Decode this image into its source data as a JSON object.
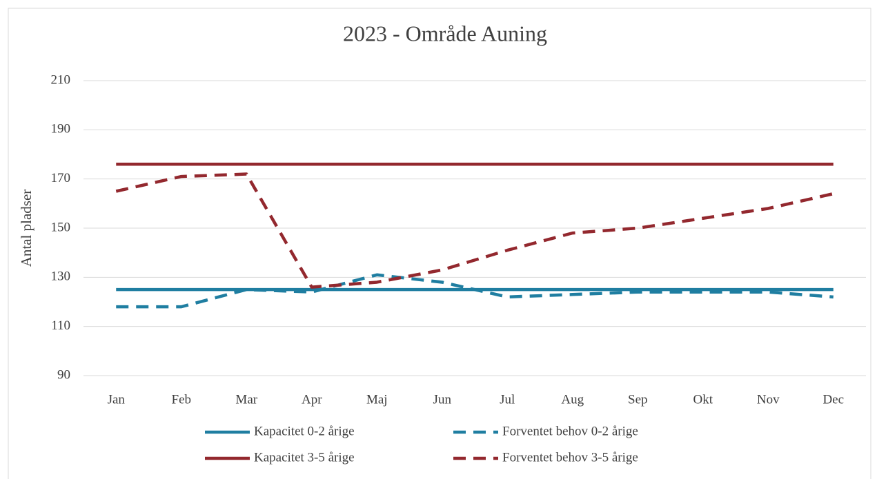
{
  "chart_data": {
    "type": "line",
    "title": "2023 - Område Auning",
    "ylabel": "Antal pladser",
    "categories": [
      "Jan",
      "Feb",
      "Mar",
      "Apr",
      "Maj",
      "Jun",
      "Jul",
      "Aug",
      "Sep",
      "Okt",
      "Nov",
      "Dec"
    ],
    "series": [
      {
        "name": "Kapacitet 0-2 årige",
        "color": "#1f7ea1",
        "dashed": false,
        "values": [
          125,
          125,
          125,
          125,
          125,
          125,
          125,
          125,
          125,
          125,
          125,
          125
        ]
      },
      {
        "name": "Forventet behov 0-2 årige",
        "color": "#1f7ea1",
        "dashed": true,
        "values": [
          118,
          118,
          125,
          124,
          131,
          128,
          122,
          123,
          124,
          124,
          124,
          122
        ]
      },
      {
        "name": "Kapacitet 3-5 årige",
        "color": "#93282e",
        "dashed": false,
        "values": [
          176,
          176,
          176,
          176,
          176,
          176,
          176,
          176,
          176,
          176,
          176,
          176
        ]
      },
      {
        "name": "Forventet behov 3-5 årige",
        "color": "#93282e",
        "dashed": true,
        "values": [
          165,
          171,
          172,
          126,
          128,
          133,
          141,
          148,
          150,
          154,
          158,
          164
        ]
      }
    ],
    "ylim": [
      90,
      210
    ],
    "yticks": [
      90,
      110,
      130,
      150,
      170,
      190,
      210
    ],
    "grid": true
  }
}
